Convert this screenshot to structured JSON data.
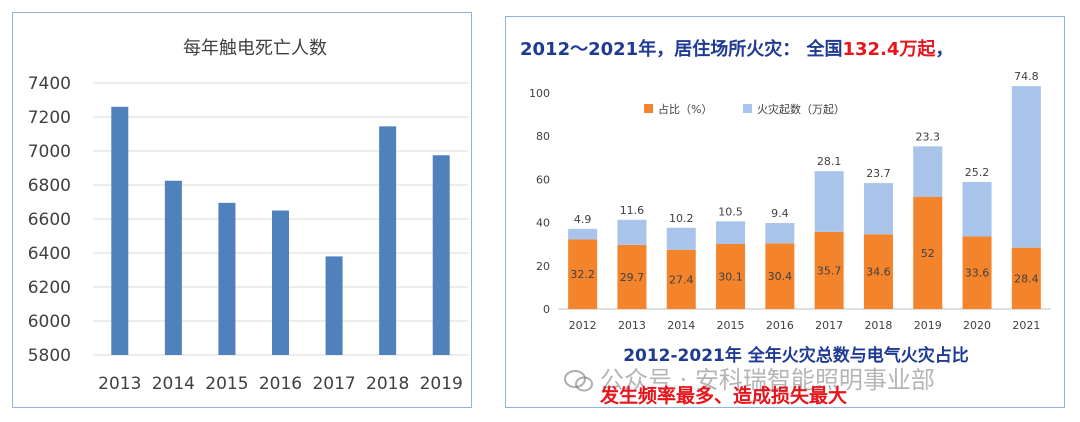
{
  "left_chart": {
    "title": "每年触电死亡人数",
    "ylim": [
      5800,
      7400
    ],
    "yticks": [
      "7400",
      "7200",
      "7000",
      "6800",
      "6600",
      "6400",
      "6200",
      "6000",
      "5800"
    ],
    "bar_color": "#4f81bd"
  },
  "right_chart": {
    "headline_prefix": "2012～2021年，居住场所火灾：  全国",
    "headline_number": "132.4万起",
    "headline_suffix": "，",
    "subtitle": "2012-2021年  全年火灾总数与电气火灾占比",
    "ylim": [
      0,
      100
    ],
    "yticks": [
      "100",
      "80",
      "60",
      "40",
      "20",
      "0"
    ],
    "legend": [
      "占比（%）",
      "火灾起数（万起）"
    ],
    "colors": {
      "share": "#f4842c",
      "fires": "#a9c4eb",
      "headline": "#1f3a93",
      "highlight": "#e8141b"
    }
  },
  "chart_data": [
    {
      "type": "bar",
      "title": "每年触电死亡人数",
      "categories": [
        "2013",
        "2014",
        "2015",
        "2016",
        "2017",
        "2018",
        "2019"
      ],
      "values": [
        7260,
        6825,
        6695,
        6650,
        6380,
        7145,
        6975
      ],
      "ylim": [
        5800,
        7400
      ],
      "grid": true
    },
    {
      "type": "bar",
      "stacked": true,
      "categories": [
        "2012",
        "2013",
        "2014",
        "2015",
        "2016",
        "2017",
        "2018",
        "2019",
        "2020",
        "2021"
      ],
      "series": [
        {
          "name": "占比（%）",
          "values": [
            32.2,
            29.7,
            27.4,
            30.1,
            30.4,
            35.7,
            34.6,
            52,
            33.6,
            28.4
          ]
        },
        {
          "name": "火灾起数（万起）",
          "values": [
            4.9,
            11.6,
            10.2,
            10.5,
            9.4,
            28.1,
            23.7,
            23.3,
            25.2,
            74.8
          ]
        }
      ],
      "ylim": [
        0,
        100
      ],
      "legend_position": "top-left"
    }
  ],
  "watermark": "公众号 · 安科瑞智能照明事业部",
  "note": "发生频率最多、造成损失最大"
}
